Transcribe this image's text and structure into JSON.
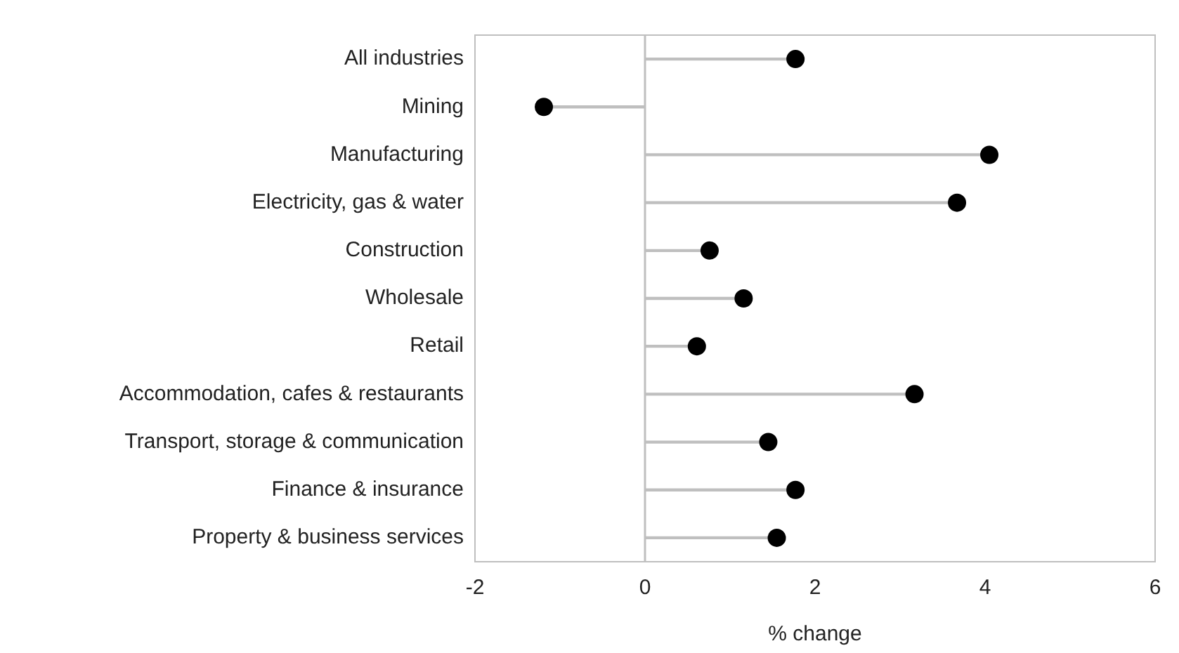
{
  "chart_data": {
    "type": "lollipop",
    "orientation": "horizontal",
    "xlabel": "% change",
    "categories": [
      "All industries",
      "Mining",
      "Manufacturing",
      "Electricity, gas & water",
      "Construction",
      "Wholesale",
      "Retail",
      "Accommodation, cafes & restaurants",
      "Transport, storage & communication",
      "Finance & insurance",
      "Property & business services"
    ],
    "values": [
      1.77,
      -1.19,
      4.05,
      3.67,
      0.76,
      1.16,
      0.61,
      3.17,
      1.45,
      1.77,
      1.55
    ],
    "color": "#000000",
    "marker": "circle",
    "xlim": [
      -2,
      6
    ],
    "xticks": [
      -2,
      0,
      2,
      4,
      6
    ],
    "ref_lines": [
      {
        "axis": "x",
        "value": 0,
        "color": "#bfbfbf"
      }
    ]
  }
}
